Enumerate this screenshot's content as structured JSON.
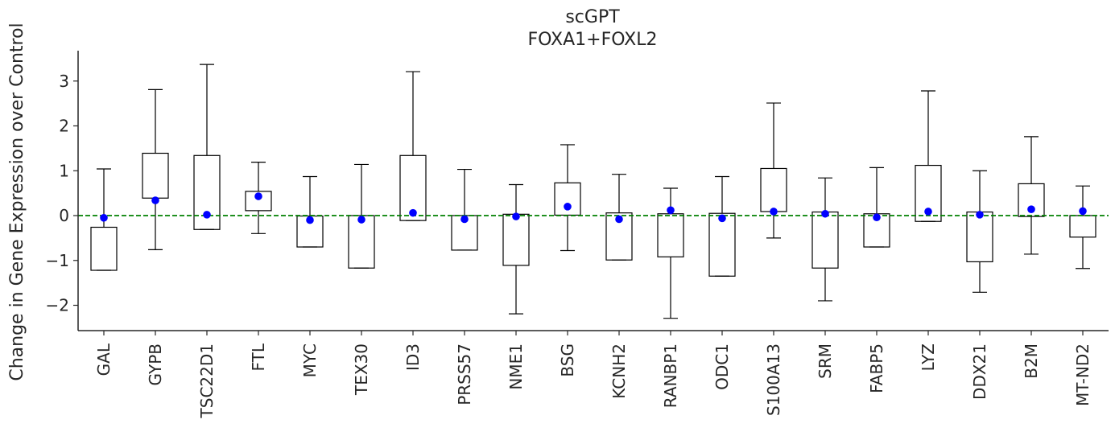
{
  "chart_data": {
    "type": "box",
    "title": "scGPT",
    "subtitle": "FOXA1+FOXL2",
    "xlabel": "",
    "ylabel": "Change in Gene Expression over Control",
    "ylim": [
      -2.6,
      3.7
    ],
    "yticks": [
      -2,
      -1,
      0,
      1,
      2,
      3
    ],
    "ytick_labels": [
      "−2",
      "−1",
      "0",
      "1",
      "2",
      "3"
    ],
    "reference_line": {
      "y": 0,
      "style": "dashed",
      "color": "#008000"
    },
    "box_color": "#000000",
    "point_color": "#0000ff",
    "grid": false,
    "categories": [
      "GAL",
      "GYPB",
      "TSC22D1",
      "FTL",
      "MYC",
      "TEX30",
      "ID3",
      "PRSS57",
      "NME1",
      "BSG",
      "KCNH2",
      "RANBP1",
      "ODC1",
      "S100A13",
      "SRM",
      "FABP5",
      "LYZ",
      "DDX21",
      "B2M",
      "MT-ND2"
    ],
    "boxes": [
      {
        "whislo": -1.22,
        "q1": -1.22,
        "q3": -0.26,
        "whishi": 1.04,
        "point": -0.05
      },
      {
        "whislo": -0.76,
        "q1": 0.39,
        "q3": 1.39,
        "whishi": 2.81,
        "point": 0.34
      },
      {
        "whislo": -0.31,
        "q1": -0.31,
        "q3": 1.34,
        "whishi": 3.37,
        "point": 0.02
      },
      {
        "whislo": -0.4,
        "q1": 0.11,
        "q3": 0.54,
        "whishi": 1.19,
        "point": 0.43
      },
      {
        "whislo": -0.7,
        "q1": -0.7,
        "q3": -0.01,
        "whishi": 0.87,
        "point": -0.1
      },
      {
        "whislo": -1.17,
        "q1": -1.17,
        "q3": 0.0,
        "whishi": 1.14,
        "point": -0.09
      },
      {
        "whislo": -0.11,
        "q1": -0.11,
        "q3": 1.34,
        "whishi": 3.21,
        "point": 0.06
      },
      {
        "whislo": -0.77,
        "q1": -0.77,
        "q3": 0.0,
        "whishi": 1.03,
        "point": -0.08
      },
      {
        "whislo": -2.19,
        "q1": -1.11,
        "q3": 0.03,
        "whishi": 0.69,
        "point": -0.02
      },
      {
        "whislo": -0.78,
        "q1": 0.01,
        "q3": 0.73,
        "whishi": 1.58,
        "point": 0.2
      },
      {
        "whislo": -0.99,
        "q1": -0.99,
        "q3": 0.06,
        "whishi": 0.92,
        "point": -0.08
      },
      {
        "whislo": -2.29,
        "q1": -0.92,
        "q3": 0.04,
        "whishi": 0.61,
        "point": 0.12
      },
      {
        "whislo": -1.35,
        "q1": -1.35,
        "q3": 0.05,
        "whishi": 0.87,
        "point": -0.06
      },
      {
        "whislo": -0.5,
        "q1": 0.09,
        "q3": 1.05,
        "whishi": 2.51,
        "point": 0.09
      },
      {
        "whislo": -1.9,
        "q1": -1.17,
        "q3": 0.08,
        "whishi": 0.84,
        "point": 0.04
      },
      {
        "whislo": -0.7,
        "q1": -0.7,
        "q3": 0.04,
        "whishi": 1.07,
        "point": -0.04
      },
      {
        "whislo": -0.13,
        "q1": -0.13,
        "q3": 1.12,
        "whishi": 2.78,
        "point": 0.09
      },
      {
        "whislo": -1.71,
        "q1": -1.03,
        "q3": 0.08,
        "whishi": 1.0,
        "point": 0.02
      },
      {
        "whislo": -0.86,
        "q1": -0.02,
        "q3": 0.71,
        "whishi": 1.76,
        "point": 0.14
      },
      {
        "whislo": -1.18,
        "q1": -0.48,
        "q3": 0.0,
        "whishi": 0.66,
        "point": 0.1
      }
    ]
  }
}
